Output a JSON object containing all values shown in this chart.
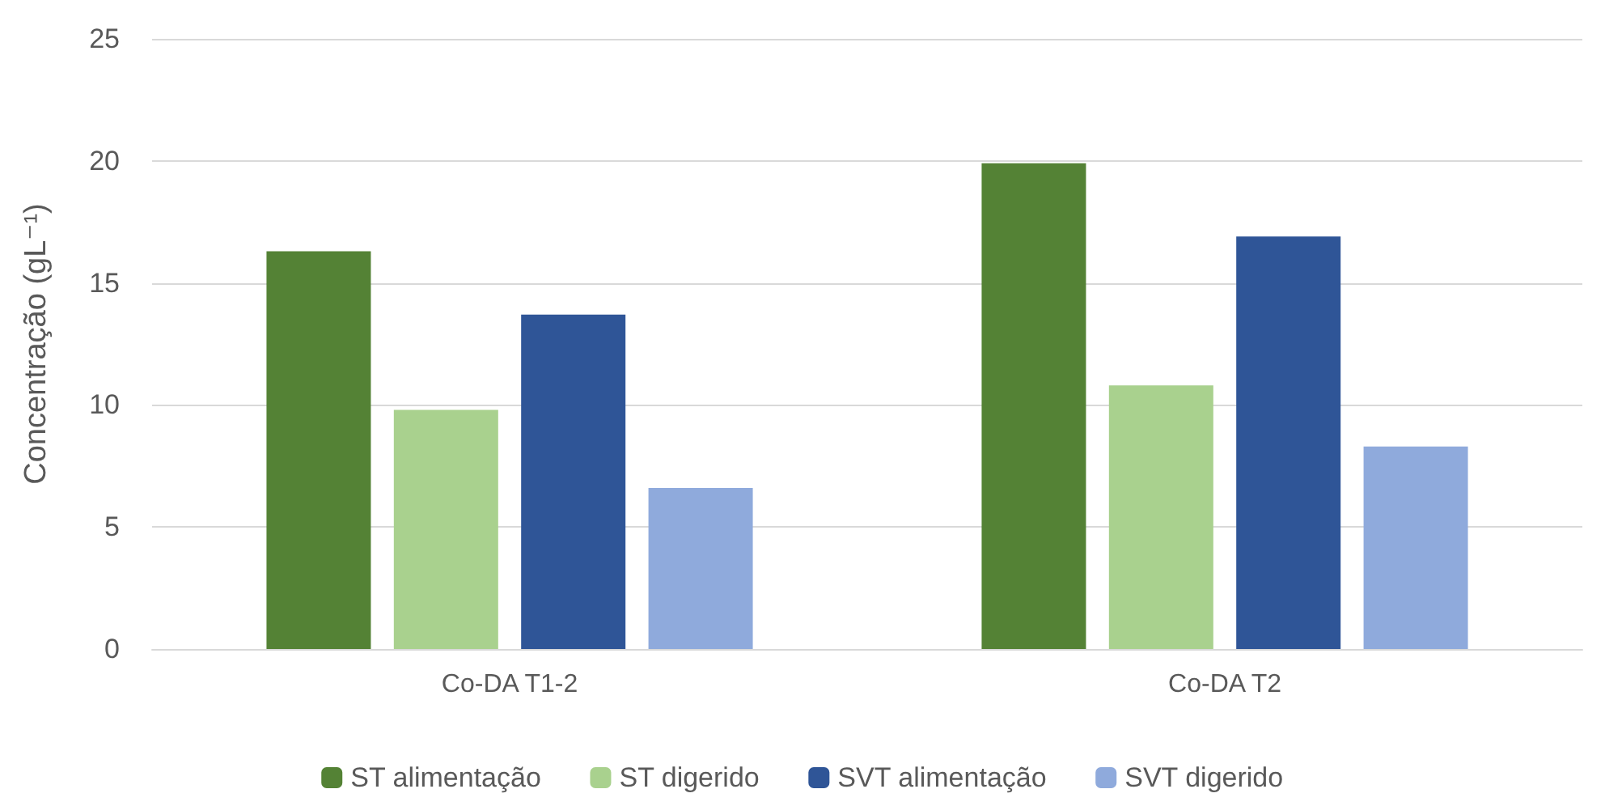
{
  "chart_data": {
    "type": "bar",
    "ylabel": "Concentração (gL⁻¹)",
    "categories": [
      "Co-DA T1-2",
      "Co-DA T2"
    ],
    "series": [
      {
        "name": "ST alimentação",
        "color": "#548235",
        "values": [
          16.3,
          19.9
        ]
      },
      {
        "name": "ST digerido",
        "color": "#a9d18e",
        "values": [
          9.8,
          10.8
        ]
      },
      {
        "name": "SVT alimentação",
        "color": "#2f5597",
        "values": [
          13.7,
          16.9
        ]
      },
      {
        "name": "SVT digerido",
        "color": "#8faadc",
        "values": [
          6.6,
          8.3
        ]
      }
    ],
    "ylim": [
      0,
      25
    ],
    "yticks": [
      0,
      5,
      10,
      15,
      20,
      25
    ],
    "grid": "y",
    "legend": "bottom"
  }
}
